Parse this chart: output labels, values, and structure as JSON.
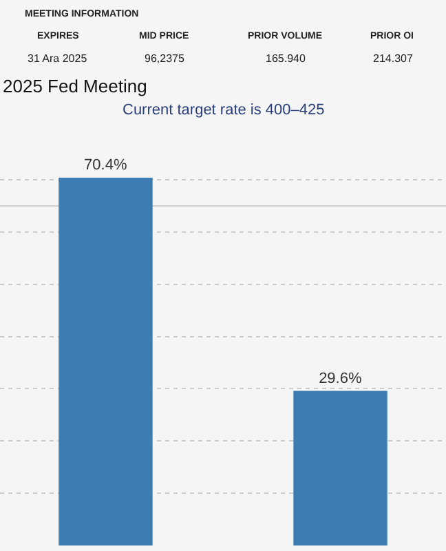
{
  "chart_data": {
    "type": "bar",
    "title": "2025 Fed Meeting",
    "subtitle": "Current target rate is 400–425",
    "categories": [
      null,
      null
    ],
    "values": [
      70.4,
      29.6
    ],
    "color": "#3f7cb4",
    "data_labels": true,
    "value_labels": [
      "70.4%",
      "29.6%"
    ],
    "yticks": [
      {
        "value": 10,
        "label": null
      },
      {
        "value": 20,
        "label": null
      },
      {
        "value": 30,
        "label": null
      },
      {
        "value": 40,
        "label": null
      },
      {
        "value": 50,
        "label": null
      },
      {
        "value": 60,
        "label": null
      },
      {
        "value": 70,
        "label": null
      }
    ],
    "grid": "y",
    "legend": false,
    "ref_lines": [
      {
        "axis": "y",
        "value": 65,
        "color": "#d0d0d0"
      }
    ],
    "annotations": [
      "MEETING INFORMATION",
      "EXPIRES",
      "MID PRICE",
      "PRIOR VOLUME",
      "PRIOR OI",
      "31 Ara 2025",
      "96,2375",
      "165.940",
      "214.307"
    ]
  }
}
